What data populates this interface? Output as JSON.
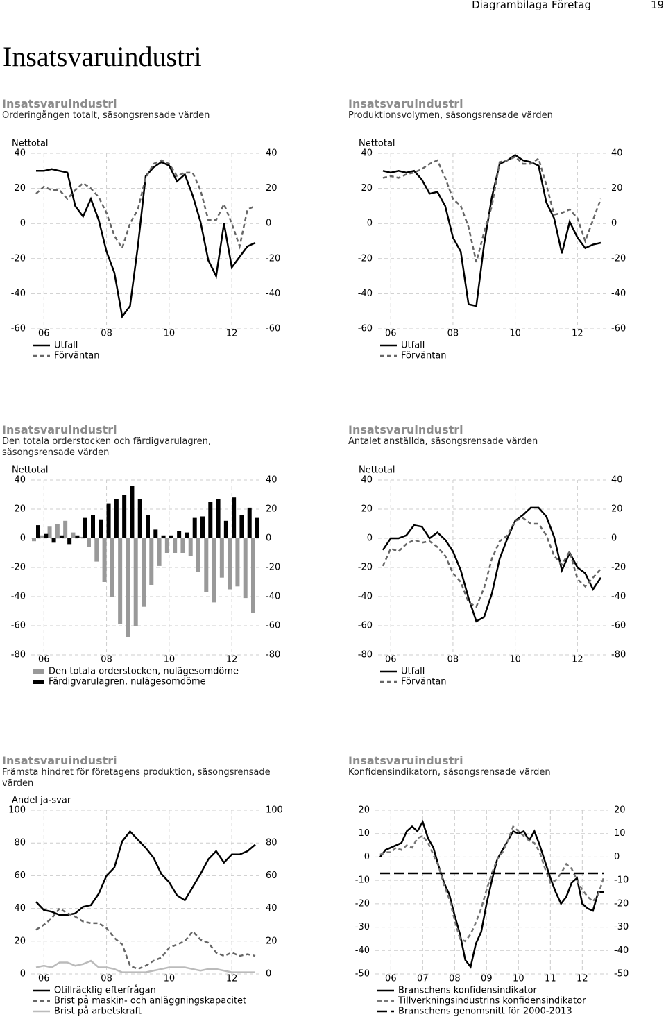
{
  "header": {
    "section": "Diagrambilaga Företag",
    "page": "19",
    "title": "Insatsvaruindustri"
  },
  "chart_data": [
    {
      "type": "line",
      "title": "Insatsvaruindustri",
      "subtitle": "Orderingången totalt, säsongsrensade värden",
      "ylabel": "Nettotal",
      "categories": [
        null,
        "06",
        null,
        null,
        null,
        null,
        null,
        null,
        null,
        "08",
        null,
        null,
        null,
        null,
        null,
        null,
        null,
        "10",
        null,
        null,
        null,
        null,
        null,
        null,
        null,
        "12",
        null,
        null,
        null
      ],
      "series": [
        {
          "name": "Utfall",
          "color": "#000000",
          "line_style": "solid",
          "values": [
            30,
            30,
            31,
            30,
            29,
            10,
            4,
            14,
            2,
            -16,
            -28,
            -53,
            -47,
            -13,
            27,
            32,
            35,
            33,
            24,
            28,
            16,
            1,
            -21,
            -30,
            0,
            -25,
            -19,
            -13,
            -11
          ]
        },
        {
          "name": "Förväntan",
          "color": "#666666",
          "line_style": "dashed",
          "values": [
            17,
            21,
            19,
            19,
            14,
            19,
            23,
            20,
            15,
            6,
            -7,
            -14,
            0,
            8,
            26,
            34,
            36,
            34,
            27,
            29,
            29,
            19,
            2,
            2,
            11,
            0,
            -13,
            8,
            10
          ]
        }
      ],
      "ylim": [
        -60,
        40
      ],
      "yticks": [
        -60,
        -40,
        -20,
        0,
        20,
        40
      ],
      "grid": true
    },
    {
      "type": "line",
      "title": "Insatsvaruindustri",
      "subtitle": "Produktionsvolymen, säsongsrensade värden",
      "ylabel": "Nettotal",
      "categories": [
        null,
        "06",
        null,
        null,
        null,
        null,
        null,
        null,
        null,
        "08",
        null,
        null,
        null,
        null,
        null,
        null,
        null,
        "10",
        null,
        null,
        null,
        null,
        null,
        null,
        null,
        "12",
        null,
        null,
        null
      ],
      "series": [
        {
          "name": "Utfall",
          "color": "#000000",
          "line_style": "solid",
          "values": [
            30,
            29,
            30,
            29,
            30,
            25,
            17,
            18,
            10,
            -8,
            -16,
            -46,
            -47,
            -12,
            15,
            34,
            36,
            39,
            36,
            35,
            33,
            12,
            3,
            -17,
            1,
            -8,
            -14,
            -12,
            -11
          ]
        },
        {
          "name": "Förväntan",
          "color": "#666666",
          "line_style": "dashed",
          "values": [
            26,
            27,
            26,
            28,
            29,
            31,
            34,
            36,
            26,
            14,
            10,
            -2,
            -22,
            -5,
            10,
            35,
            36,
            38,
            34,
            34,
            37,
            22,
            5,
            6,
            8,
            3,
            -10,
            2,
            14
          ]
        }
      ],
      "ylim": [
        -60,
        40
      ],
      "yticks": [
        -60,
        -40,
        -20,
        0,
        20,
        40
      ],
      "grid": true
    },
    {
      "type": "bar",
      "title": "Insatsvaruindustri",
      "subtitle": "Den totala orderstocken och färdigvarulagren, säsongsrensade värden",
      "ylabel": "Nettotal",
      "categories": [
        null,
        "06",
        null,
        null,
        null,
        null,
        null,
        null,
        null,
        "08",
        null,
        null,
        null,
        null,
        null,
        null,
        null,
        "10",
        null,
        null,
        null,
        null,
        null,
        null,
        null,
        "12",
        null,
        null,
        null
      ],
      "series": [
        {
          "name": "Den totala orderstocken, nulägesomdöme",
          "color": "#999999",
          "values": [
            -2,
            2,
            8,
            10,
            12,
            4,
            1,
            -6,
            -16,
            -30,
            -40,
            -59,
            -68,
            -60,
            -47,
            -32,
            -19,
            -10,
            -10,
            -10,
            -12,
            -23,
            -37,
            -44,
            -27,
            -35,
            -33,
            -41,
            -51
          ]
        },
        {
          "name": "Färdigvarulagren, nulägesomdöme",
          "color": "#000000",
          "values": [
            9,
            3,
            -3,
            2,
            -4,
            2,
            14,
            16,
            13,
            24,
            27,
            30,
            36,
            27,
            16,
            6,
            2,
            2,
            5,
            4,
            14,
            15,
            25,
            27,
            12,
            28,
            16,
            21,
            14
          ]
        }
      ],
      "ylim": [
        -80,
        40
      ],
      "yticks": [
        -80,
        -60,
        -40,
        -20,
        0,
        20,
        40
      ],
      "grid": true
    },
    {
      "type": "line",
      "title": "Insatsvaruindustri",
      "subtitle": "Antalet anställda, säsongsrensade värden",
      "ylabel": "Nettotal",
      "categories": [
        null,
        "06",
        null,
        null,
        null,
        null,
        null,
        null,
        null,
        "08",
        null,
        null,
        null,
        null,
        null,
        null,
        null,
        "10",
        null,
        null,
        null,
        null,
        null,
        null,
        null,
        "12",
        null,
        null,
        null
      ],
      "series": [
        {
          "name": "Utfall",
          "color": "#000000",
          "line_style": "solid",
          "values": [
            -8,
            0,
            0,
            2,
            9,
            8,
            0,
            4,
            -1,
            -9,
            -22,
            -41,
            -57,
            -54,
            -38,
            -14,
            0,
            12,
            16,
            21,
            21,
            15,
            1,
            -22,
            -10,
            -20,
            -24,
            -35,
            -27
          ]
        },
        {
          "name": "Förväntan",
          "color": "#666666",
          "line_style": "dashed",
          "values": [
            -19,
            -7,
            -9,
            -4,
            -1,
            -3,
            -2,
            -6,
            -12,
            -24,
            -30,
            -44,
            -47,
            -34,
            -14,
            -2,
            2,
            12,
            14,
            10,
            10,
            2,
            -12,
            -18,
            -9,
            -28,
            -33,
            -27,
            -21
          ]
        }
      ],
      "ylim": [
        -80,
        40
      ],
      "yticks": [
        -80,
        -60,
        -40,
        -20,
        0,
        20,
        40
      ],
      "grid": true
    },
    {
      "type": "line",
      "title": "Insatsvaruindustri",
      "subtitle": "Främsta hindret för företagens produktion, säsongsrensade värden",
      "ylabel": "Andel ja-svar",
      "categories": [
        null,
        "06",
        null,
        null,
        null,
        null,
        null,
        null,
        null,
        "08",
        null,
        null,
        null,
        null,
        null,
        null,
        null,
        "10",
        null,
        null,
        null,
        null,
        null,
        null,
        null,
        "12",
        null,
        null,
        null
      ],
      "series": [
        {
          "name": "Otillräcklig efterfrågan",
          "color": "#000000",
          "line_style": "solid",
          "values": [
            44,
            39,
            38,
            36,
            36,
            37,
            41,
            42,
            49,
            60,
            65,
            81,
            87,
            82,
            77,
            71,
            61,
            56,
            48,
            45,
            53,
            61,
            70,
            75,
            68,
            73,
            73,
            75,
            79
          ]
        },
        {
          "name": "Brist på maskin- och anläggningskapacitet",
          "color": "#666666",
          "line_style": "dashed",
          "values": [
            27,
            30,
            34,
            40,
            37,
            35,
            32,
            31,
            31,
            28,
            22,
            18,
            5,
            3,
            5,
            8,
            10,
            16,
            18,
            20,
            26,
            21,
            19,
            13,
            11,
            13,
            11,
            12,
            11
          ]
        },
        {
          "name": "Brist på arbetskraft",
          "color": "#bbbbbb",
          "line_style": "solid",
          "values": [
            4,
            5,
            4,
            7,
            7,
            5,
            6,
            8,
            4,
            4,
            3,
            1,
            1,
            1,
            1,
            2,
            3,
            4,
            4,
            4,
            3,
            2,
            3,
            3,
            2,
            1,
            1,
            1,
            1
          ]
        }
      ],
      "ylim": [
        0,
        100
      ],
      "yticks": [
        0,
        20,
        40,
        60,
        80,
        100
      ],
      "grid": true
    },
    {
      "type": "line",
      "title": "Insatsvaruindustri",
      "subtitle": "Konfidensindikatorn, säsongsrensade värden",
      "categories": [
        null,
        null,
        "06",
        null,
        null,
        null,
        null,
        null,
        "07",
        null,
        null,
        null,
        null,
        null,
        "08",
        null,
        null,
        null,
        null,
        null,
        "09",
        null,
        null,
        null,
        null,
        null,
        "10",
        null,
        null,
        null,
        null,
        null,
        "11",
        null,
        null,
        null,
        null,
        null,
        "12",
        null,
        null,
        null,
        null
      ],
      "series": [
        {
          "name": "Branschens konfidensindikator",
          "color": "#000000",
          "line_style": "solid",
          "values": [
            0,
            3,
            4,
            5,
            6,
            11,
            13,
            11,
            15,
            8,
            4,
            -4,
            -11,
            -16,
            -25,
            -33,
            -44,
            -47,
            -37,
            -32,
            -20,
            -10,
            -1,
            3,
            7,
            11,
            10,
            11,
            7,
            11,
            5,
            -2,
            -9,
            -15,
            -20,
            -17,
            -11,
            -9,
            -20,
            -22,
            -23,
            -15,
            -15
          ]
        },
        {
          "name": "Tillverkningsindustrins konfidensindikator",
          "color": "#777777",
          "line_style": "dashed",
          "values": [
            1,
            2,
            2,
            4,
            3,
            5,
            4,
            8,
            9,
            6,
            1,
            -4,
            -12,
            -18,
            -27,
            -35,
            -36,
            -33,
            -28,
            -22,
            -14,
            -7,
            -1,
            2,
            7,
            13,
            11,
            9,
            7,
            6,
            2,
            -5,
            -11,
            -10,
            -7,
            -3,
            -5,
            -10,
            -14,
            -17,
            -19,
            -16,
            -9
          ]
        },
        {
          "name": "Branschens genomsnitt för 2000-2013",
          "color": "#000000",
          "line_style": "longdash",
          "values": [
            -7,
            -7,
            -7,
            -7,
            -7,
            -7,
            -7,
            -7,
            -7,
            -7,
            -7,
            -7,
            -7,
            -7,
            -7,
            -7,
            -7,
            -7,
            -7,
            -7,
            -7,
            -7,
            -7,
            -7,
            -7,
            -7,
            -7,
            -7,
            -7,
            -7,
            -7,
            -7,
            -7,
            -7,
            -7,
            -7,
            -7,
            -7,
            -7,
            -7,
            -7,
            -7,
            -7
          ]
        }
      ],
      "ylim": [
        -50,
        20
      ],
      "yticks": [
        -50,
        -40,
        -30,
        -20,
        -10,
        0,
        10,
        20
      ],
      "grid": true
    }
  ]
}
